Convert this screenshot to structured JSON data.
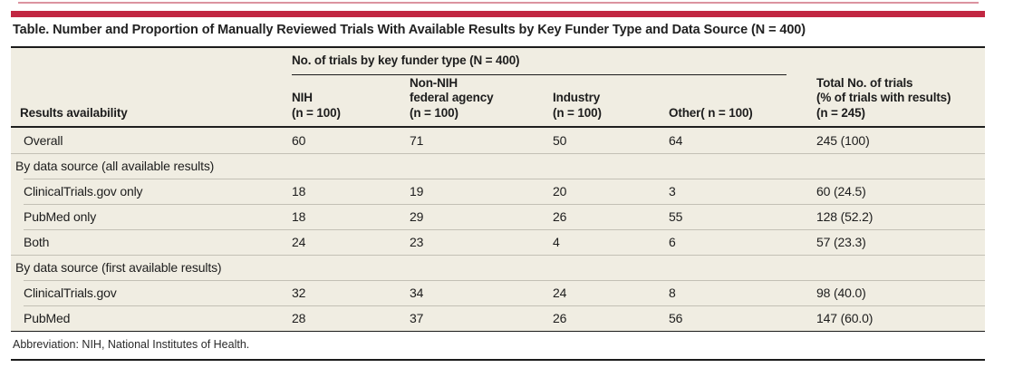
{
  "title": "Table. Number and Proportion of Manually Reviewed Trials With Available Results by Key Funder Type and Data Source (N = 400)",
  "table": {
    "spanner": "No. of trials by key funder type (N = 400)",
    "row_header": "Results availability",
    "columns": [
      {
        "text": "NIH\n(n = 100)"
      },
      {
        "text": "Non-NIH\nfederal agency\n(n = 100)"
      },
      {
        "text": "Industry\n(n = 100)"
      },
      {
        "text": "Other( n = 100)"
      },
      {
        "text": "Total No. of trials\n(% of trials with results)\n (n = 245)"
      }
    ],
    "rows": [
      {
        "type": "data",
        "label": "Overall",
        "values": [
          "60",
          "71",
          "50",
          "64",
          "245 (100)"
        ]
      },
      {
        "type": "section",
        "label": "By data source (all available results)"
      },
      {
        "type": "data",
        "label": "ClinicalTrials.gov only",
        "values": [
          "18",
          "19",
          "20",
          "3",
          "60 (24.5)"
        ]
      },
      {
        "type": "data",
        "label": "PubMed only",
        "values": [
          "18",
          "29",
          "26",
          "55",
          "128 (52.2)"
        ]
      },
      {
        "type": "data",
        "label": "Both",
        "values": [
          "24",
          "23",
          "4",
          "6",
          "57 (23.3)"
        ]
      },
      {
        "type": "section",
        "label": "By data source (first available results)"
      },
      {
        "type": "data",
        "label": "ClinicalTrials.gov",
        "values": [
          "32",
          "34",
          "24",
          "8",
          "98 (40.0)"
        ]
      },
      {
        "type": "data",
        "label": "PubMed",
        "values": [
          "28",
          "37",
          "26",
          "56",
          "147 (60.0)"
        ]
      }
    ]
  },
  "footnote": "Abbreviation: NIH, National Institutes of Health.",
  "colors": {
    "accent_red": "#c12742",
    "faint_top_line": "#db93a0",
    "panel_background": "#f0ede2",
    "row_divider": "#c3c0b5",
    "rule_dark": "#1c1c1c"
  }
}
